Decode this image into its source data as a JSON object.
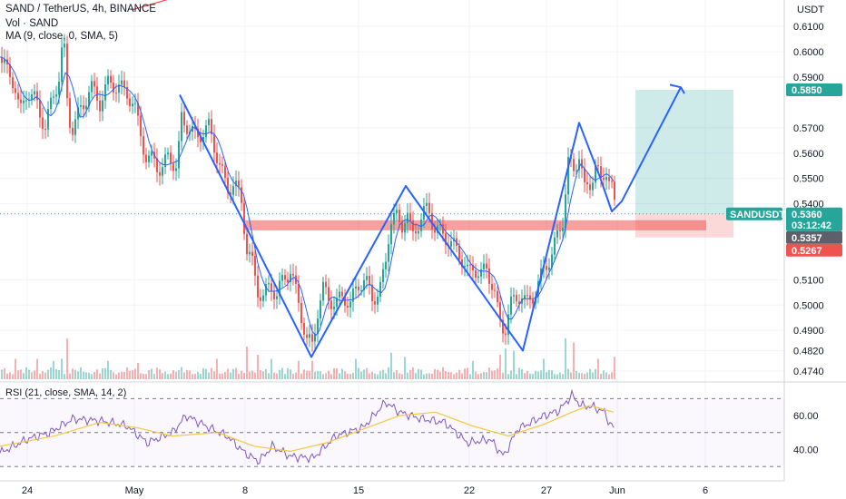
{
  "header": {
    "symbol_line": "SAND / TetherUS, 4h, BINANCE",
    "volume_line": "Vol · SAND",
    "ma_line": "MA (9, close, 0, SMA, 5)",
    "rsi_line": "RSI (21, close, SMA, 14, 2)",
    "currency": "USDT"
  },
  "chart_data": {
    "type": "candlestick",
    "x_ticks": [
      "24",
      "May",
      "8",
      "15",
      "22",
      "27",
      "Jun",
      "6"
    ],
    "price_ticks": [
      "0.6100",
      "0.6000",
      "0.5900",
      "0.5700",
      "0.5600",
      "0.5500",
      "0.5400",
      "0.5100",
      "0.5000",
      "0.4900",
      "0.4820",
      "0.4740"
    ],
    "price_labels": {
      "target": "0.5850",
      "symbol": "SANDUSDT",
      "last": "0.5360",
      "countdown": "03:12:42",
      "ma": "0.5357",
      "stop": "0.5267"
    },
    "rsi_ticks": [
      "60.00",
      "40.00"
    ],
    "price_range": [
      0.47,
      0.614
    ],
    "rsi_range": [
      28,
      75
    ],
    "close_path": [
      [
        0,
        0.598
      ],
      [
        8,
        0.592
      ],
      [
        16,
        0.588
      ],
      [
        22,
        0.575
      ],
      [
        30,
        0.585
      ],
      [
        40,
        0.58
      ],
      [
        50,
        0.57
      ],
      [
        58,
        0.582
      ],
      [
        65,
        0.59
      ],
      [
        70,
        0.606
      ],
      [
        75,
        0.575
      ],
      [
        80,
        0.57
      ],
      [
        90,
        0.578
      ],
      [
        100,
        0.586
      ],
      [
        110,
        0.58
      ],
      [
        120,
        0.588
      ],
      [
        130,
        0.586
      ],
      [
        140,
        0.584
      ],
      [
        148,
        0.578
      ],
      [
        155,
        0.568
      ],
      [
        162,
        0.556
      ],
      [
        170,
        0.558
      ],
      [
        178,
        0.552
      ],
      [
        186,
        0.56
      ],
      [
        195,
        0.553
      ],
      [
        200,
        0.574
      ],
      [
        208,
        0.57
      ],
      [
        216,
        0.566
      ],
      [
        222,
        0.568
      ],
      [
        230,
        0.57
      ],
      [
        236,
        0.563
      ],
      [
        242,
        0.555
      ],
      [
        250,
        0.546
      ],
      [
        258,
        0.548
      ],
      [
        266,
        0.541
      ],
      [
        272,
        0.522
      ],
      [
        278,
        0.516
      ],
      [
        284,
        0.506
      ],
      [
        290,
        0.503
      ],
      [
        298,
        0.508
      ],
      [
        305,
        0.504
      ],
      [
        312,
        0.51
      ],
      [
        320,
        0.514
      ],
      [
        326,
        0.505
      ],
      [
        332,
        0.496
      ],
      [
        338,
        0.486
      ],
      [
        344,
        0.484
      ],
      [
        350,
        0.498
      ],
      [
        356,
        0.506
      ],
      [
        362,
        0.503
      ],
      [
        370,
        0.5
      ],
      [
        378,
        0.504
      ],
      [
        386,
        0.5
      ],
      [
        394,
        0.508
      ],
      [
        402,
        0.51
      ],
      [
        410,
        0.503
      ],
      [
        418,
        0.505
      ],
      [
        424,
        0.514
      ],
      [
        430,
        0.534
      ],
      [
        436,
        0.535
      ],
      [
        442,
        0.53
      ],
      [
        448,
        0.538
      ],
      [
        454,
        0.526
      ],
      [
        460,
        0.532
      ],
      [
        466,
        0.536
      ],
      [
        472,
        0.538
      ],
      [
        478,
        0.531
      ],
      [
        486,
        0.528
      ],
      [
        494,
        0.526
      ],
      [
        502,
        0.522
      ],
      [
        510,
        0.518
      ],
      [
        516,
        0.512
      ],
      [
        522,
        0.515
      ],
      [
        530,
        0.512
      ],
      [
        536,
        0.514
      ],
      [
        544,
        0.507
      ],
      [
        550,
        0.493
      ],
      [
        556,
        0.49
      ],
      [
        562,
        0.5
      ],
      [
        568,
        0.502
      ],
      [
        574,
        0.505
      ],
      [
        580,
        0.5
      ],
      [
        586,
        0.503
      ],
      [
        594,
        0.509
      ],
      [
        600,
        0.515
      ],
      [
        608,
        0.52
      ],
      [
        614,
        0.527
      ],
      [
        620,
        0.534
      ],
      [
        626,
        0.556
      ],
      [
        632,
        0.553
      ],
      [
        638,
        0.56
      ],
      [
        644,
        0.545
      ],
      [
        650,
        0.548
      ],
      [
        656,
        0.555
      ],
      [
        662,
        0.548
      ],
      [
        668,
        0.554
      ],
      [
        674,
        0.546
      ],
      [
        678,
        0.536
      ]
    ],
    "pattern_path": [
      [
        198,
        0.583
      ],
      [
        343,
        0.4795
      ],
      [
        447,
        0.547
      ],
      [
        576,
        0.482
      ],
      [
        638,
        0.572
      ],
      [
        661,
        0.5505
      ],
      [
        674,
        0.537
      ],
      [
        685,
        0.541
      ],
      [
        750,
        0.586
      ]
    ],
    "arrow_head": [
      [
        738,
        0.587
      ],
      [
        750,
        0.586
      ],
      [
        754,
        0.5835
      ]
    ],
    "support_zone": [
      0.5335,
      0.5295
    ],
    "long_position": {
      "entry": 0.536,
      "target": 0.585,
      "stop": 0.5267
    },
    "volume_spikes": [
      [
        18,
        0.5
      ],
      [
        40,
        0.5
      ],
      [
        58,
        0.45
      ],
      [
        68,
        0.5
      ],
      [
        75,
        1.0
      ],
      [
        118,
        0.45
      ],
      [
        152,
        0.4
      ],
      [
        240,
        0.5
      ],
      [
        272,
        0.8
      ],
      [
        285,
        0.6
      ],
      [
        300,
        0.5
      ],
      [
        330,
        0.45
      ],
      [
        345,
        0.45
      ],
      [
        393,
        0.5
      ],
      [
        430,
        0.65
      ],
      [
        447,
        0.55
      ],
      [
        520,
        0.45
      ],
      [
        550,
        0.6
      ],
      [
        556,
        0.75
      ],
      [
        565,
        0.7
      ],
      [
        600,
        0.5
      ],
      [
        624,
        1.0
      ],
      [
        632,
        0.9
      ],
      [
        660,
        0.5
      ],
      [
        676,
        0.55
      ]
    ],
    "rsi_path": [
      [
        0,
        38
      ],
      [
        30,
        46
      ],
      [
        55,
        50
      ],
      [
        80,
        58
      ],
      [
        110,
        57
      ],
      [
        140,
        54
      ],
      [
        162,
        44
      ],
      [
        190,
        50
      ],
      [
        205,
        60
      ],
      [
        230,
        53
      ],
      [
        250,
        48
      ],
      [
        270,
        38
      ],
      [
        285,
        33
      ],
      [
        300,
        42
      ],
      [
        320,
        36
      ],
      [
        345,
        35
      ],
      [
        370,
        48
      ],
      [
        400,
        53
      ],
      [
        425,
        68
      ],
      [
        440,
        62
      ],
      [
        465,
        58
      ],
      [
        490,
        56
      ],
      [
        515,
        44
      ],
      [
        540,
        46
      ],
      [
        555,
        36
      ],
      [
        570,
        52
      ],
      [
        600,
        60
      ],
      [
        616,
        63
      ],
      [
        630,
        72
      ],
      [
        640,
        66
      ],
      [
        654,
        65
      ],
      [
        666,
        62
      ],
      [
        672,
        55
      ],
      [
        676,
        53
      ]
    ],
    "rsi_ma_path": [
      [
        0,
        42
      ],
      [
        60,
        48
      ],
      [
        110,
        56
      ],
      [
        150,
        53
      ],
      [
        190,
        48
      ],
      [
        240,
        50
      ],
      [
        280,
        42
      ],
      [
        320,
        39
      ],
      [
        360,
        44
      ],
      [
        400,
        52
      ],
      [
        440,
        60
      ],
      [
        480,
        62
      ],
      [
        520,
        54
      ],
      [
        560,
        48
      ],
      [
        600,
        55
      ],
      [
        630,
        62
      ],
      [
        650,
        66
      ],
      [
        676,
        62
      ]
    ],
    "grid": true
  },
  "colors": {
    "up": "#26a69a",
    "down": "#ef5350",
    "pattern": "#2962ff",
    "ma": "#2962ff",
    "rsi": "#7e57c2",
    "rsi_ma": "#f5c842",
    "target_zone": "rgba(38,166,154,0.22)",
    "stop_zone": "rgba(239,83,80,0.22)",
    "support": "rgba(239,83,80,0.55)",
    "target_tag": "#26a69a",
    "last_tag": "#26a69a",
    "ma_tag": "#5d606b",
    "stop_tag": "#ef5350"
  }
}
